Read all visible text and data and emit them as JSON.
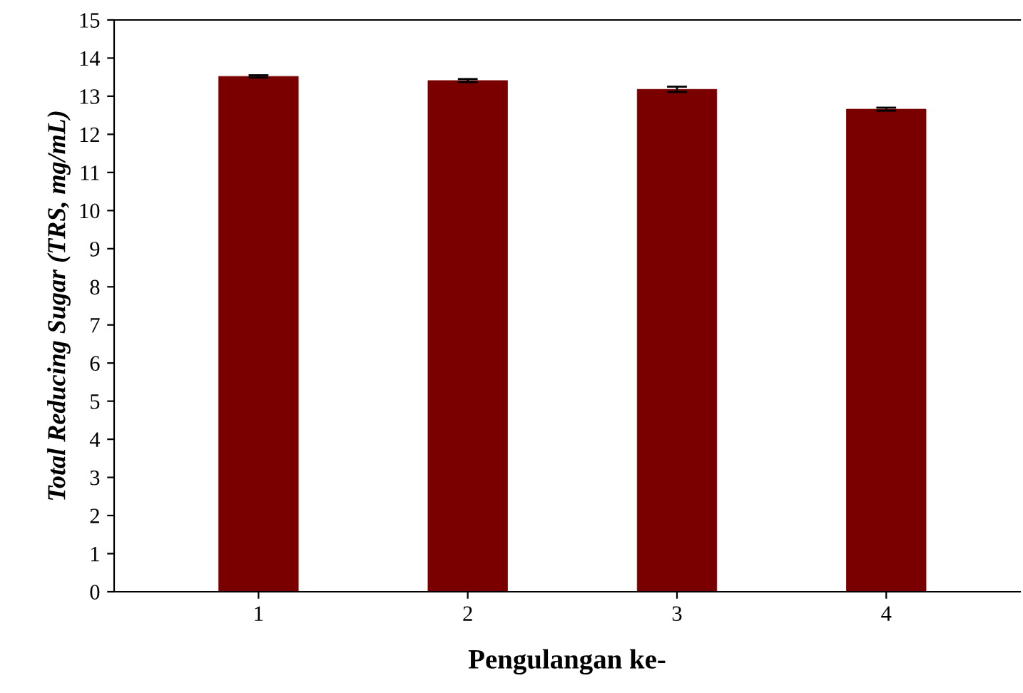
{
  "chart_data": {
    "type": "bar",
    "xlabel": "Pengulangan ke-",
    "ylabel": "Total Reducing Sugar (TRS, mg/mL)",
    "categories": [
      "1",
      "2",
      "3",
      "4"
    ],
    "values": [
      13.52,
      13.41,
      13.18,
      12.66
    ],
    "errors": [
      0.03,
      0.04,
      0.07,
      0.04
    ],
    "color": "#7a0000",
    "ylim": [
      0,
      15
    ],
    "yticks": [
      0,
      1,
      2,
      3,
      4,
      5,
      6,
      7,
      8,
      9,
      10,
      11,
      12,
      13,
      14,
      15
    ],
    "grid": false,
    "legend": false
  }
}
